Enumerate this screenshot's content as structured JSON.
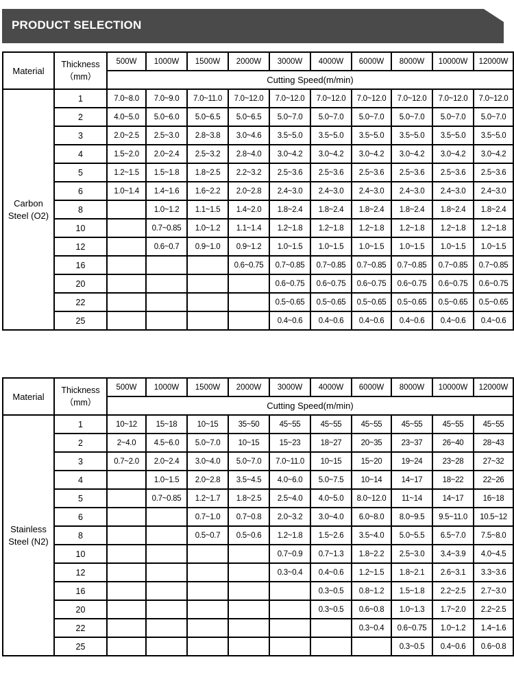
{
  "banner": {
    "title": "PRODUCT SELECTION"
  },
  "header": {
    "material": "Material",
    "thickness": "Thickness",
    "unit": "（mm）",
    "cutting_speed": "Cutting Speed(m/min)",
    "powers": [
      "500W",
      "1000W",
      "1500W",
      "2000W",
      "3000W",
      "4000W",
      "6000W",
      "8000W",
      "10000W",
      "12000W"
    ]
  },
  "tables": [
    {
      "material": "Carbon Steel (O2)",
      "rows": [
        {
          "thickness": "1",
          "speeds": [
            "7.0~8.0",
            "7.0~9.0",
            "7.0~11.0",
            "7.0~12.0",
            "7.0~12.0",
            "7.0~12.0",
            "7.0~12.0",
            "7.0~12.0",
            "7.0~12.0",
            "7.0~12.0"
          ]
        },
        {
          "thickness": "2",
          "speeds": [
            "4.0~5.0",
            "5.0~6.0",
            "5.0~6.5",
            "5.0~6.5",
            "5.0~7.0",
            "5.0~7.0",
            "5.0~7.0",
            "5.0~7.0",
            "5.0~7.0",
            "5.0~7.0"
          ]
        },
        {
          "thickness": "3",
          "speeds": [
            "2.0~2.5",
            "2.5~3.0",
            "2.8~3.8",
            "3.0~4.6",
            "3.5~5.0",
            "3.5~5.0",
            "3.5~5.0",
            "3.5~5.0",
            "3.5~5.0",
            "3.5~5.0"
          ]
        },
        {
          "thickness": "4",
          "speeds": [
            "1.5~2.0",
            "2.0~2.4",
            "2.5~3.2",
            "2.8~4.0",
            "3.0~4.2",
            "3.0~4.2",
            "3.0~4.2",
            "3.0~4.2",
            "3.0~4.2",
            "3.0~4.2"
          ]
        },
        {
          "thickness": "5",
          "speeds": [
            "1.2~1.5",
            "1.5~1.8",
            "1.8~2.5",
            "2.2~3.2",
            "2.5~3.6",
            "2.5~3.6",
            "2.5~3.6",
            "2.5~3.6",
            "2.5~3.6",
            "2.5~3.6"
          ]
        },
        {
          "thickness": "6",
          "speeds": [
            "1.0~1.4",
            "1.4~1.6",
            "1.6~2.2",
            "2.0~2.8",
            "2.4~3.0",
            "2.4~3.0",
            "2.4~3.0",
            "2.4~3.0",
            "2.4~3.0",
            "2.4~3.0"
          ]
        },
        {
          "thickness": "8",
          "speeds": [
            "",
            "1.0~1.2",
            "1.1~1.5",
            "1.4~2.0",
            "1.8~2.4",
            "1.8~2.4",
            "1.8~2.4",
            "1.8~2.4",
            "1.8~2.4",
            "1.8~2.4"
          ]
        },
        {
          "thickness": "10",
          "speeds": [
            "",
            "0.7~0.85",
            "1.0~1.2",
            "1.1~1.4",
            "1.2~1.8",
            "1.2~1.8",
            "1.2~1.8",
            "1.2~1.8",
            "1.2~1.8",
            "1.2~1.8"
          ]
        },
        {
          "thickness": "12",
          "speeds": [
            "",
            "0.6~0.7",
            "0.9~1.0",
            "0.9~1.2",
            "1.0~1.5",
            "1.0~1.5",
            "1.0~1.5",
            "1.0~1.5",
            "1.0~1.5",
            "1.0~1.5"
          ]
        },
        {
          "thickness": "16",
          "speeds": [
            "",
            "",
            "",
            "0.6~0.75",
            "0.7~0.85",
            "0.7~0.85",
            "0.7~0.85",
            "0.7~0.85",
            "0.7~0.85",
            "0.7~0.85"
          ]
        },
        {
          "thickness": "20",
          "speeds": [
            "",
            "",
            "",
            "",
            "0.6~0.75",
            "0.6~0.75",
            "0.6~0.75",
            "0.6~0.75",
            "0.6~0.75",
            "0.6~0.75"
          ]
        },
        {
          "thickness": "22",
          "speeds": [
            "",
            "",
            "",
            "",
            "0.5~0.65",
            "0.5~0.65",
            "0.5~0.65",
            "0.5~0.65",
            "0.5~0.65",
            "0.5~0.65"
          ]
        },
        {
          "thickness": "25",
          "speeds": [
            "",
            "",
            "",
            "",
            "0.4~0.6",
            "0.4~0.6",
            "0.4~0.6",
            "0.4~0.6",
            "0.4~0.6",
            "0.4~0.6"
          ]
        }
      ]
    },
    {
      "material": "Stainless Steel (N2)",
      "rows": [
        {
          "thickness": "1",
          "speeds": [
            "10~12",
            "15~18",
            "10~15",
            "35~50",
            "45~55",
            "45~55",
            "45~55",
            "45~55",
            "45~55",
            "45~55"
          ]
        },
        {
          "thickness": "2",
          "speeds": [
            "2~4.0",
            "4.5~6.0",
            "5.0~7.0",
            "10~15",
            "15~23",
            "18~27",
            "20~35",
            "23~37",
            "26~40",
            "28~43"
          ]
        },
        {
          "thickness": "3",
          "speeds": [
            "0.7~2.0",
            "2.0~2.4",
            "3.0~4.0",
            "5.0~7.0",
            "7.0~11.0",
            "10~15",
            "15~20",
            "19~24",
            "23~28",
            "27~32"
          ]
        },
        {
          "thickness": "4",
          "speeds": [
            "",
            "1.0~1.5",
            "2.0~2.8",
            "3.5~4.5",
            "4.0~6.0",
            "5.0~7.5",
            "10~14",
            "14~17",
            "18~22",
            "22~26"
          ]
        },
        {
          "thickness": "5",
          "speeds": [
            "",
            "0.7~0.85",
            "1.2~1.7",
            "1.8~2.5",
            "2.5~4.0",
            "4.0~5.0",
            "8.0~12.0",
            "11~14",
            "14~17",
            "16~18"
          ]
        },
        {
          "thickness": "6",
          "speeds": [
            "",
            "",
            "0.7~1.0",
            "0.7~0.8",
            "2.0~3.2",
            "3.0~4.0",
            "6.0~8.0",
            "8.0~9.5",
            "9.5~11.0",
            "10.5~12"
          ]
        },
        {
          "thickness": "8",
          "speeds": [
            "",
            "",
            "0.5~0.7",
            "0.5~0.6",
            "1.2~1.8",
            "1.5~2.6",
            "3.5~4.0",
            "5.0~5.5",
            "6.5~7.0",
            "7.5~8.0"
          ]
        },
        {
          "thickness": "10",
          "speeds": [
            "",
            "",
            "",
            "",
            "0.7~0.9",
            "0.7~1.3",
            "1.8~2.2",
            "2.5~3.0",
            "3.4~3.9",
            "4.0~4.5"
          ]
        },
        {
          "thickness": "12",
          "speeds": [
            "",
            "",
            "",
            "",
            "0.3~0.4",
            "0.4~0.6",
            "1.2~1.5",
            "1.8~2.1",
            "2.6~3.1",
            "3.3~3.6"
          ]
        },
        {
          "thickness": "16",
          "speeds": [
            "",
            "",
            "",
            "",
            "",
            "0.3~0.5",
            "0.8~1.2",
            "1.5~1.8",
            "2.2~2.5",
            "2.7~3.0"
          ]
        },
        {
          "thickness": "20",
          "speeds": [
            "",
            "",
            "",
            "",
            "",
            "0.3~0.5",
            "0.6~0.8",
            "1.0~1.3",
            "1.7~2.0",
            "2.2~2.5"
          ]
        },
        {
          "thickness": "22",
          "speeds": [
            "",
            "",
            "",
            "",
            "",
            "",
            "0.3~0.4",
            "0.6~0.75",
            "1.0~1.2",
            "1.4~1.6"
          ]
        },
        {
          "thickness": "25",
          "speeds": [
            "",
            "",
            "",
            "",
            "",
            "",
            "",
            "0.3~0.5",
            "0.4~0.6",
            "0.6~0.8"
          ]
        }
      ]
    }
  ]
}
